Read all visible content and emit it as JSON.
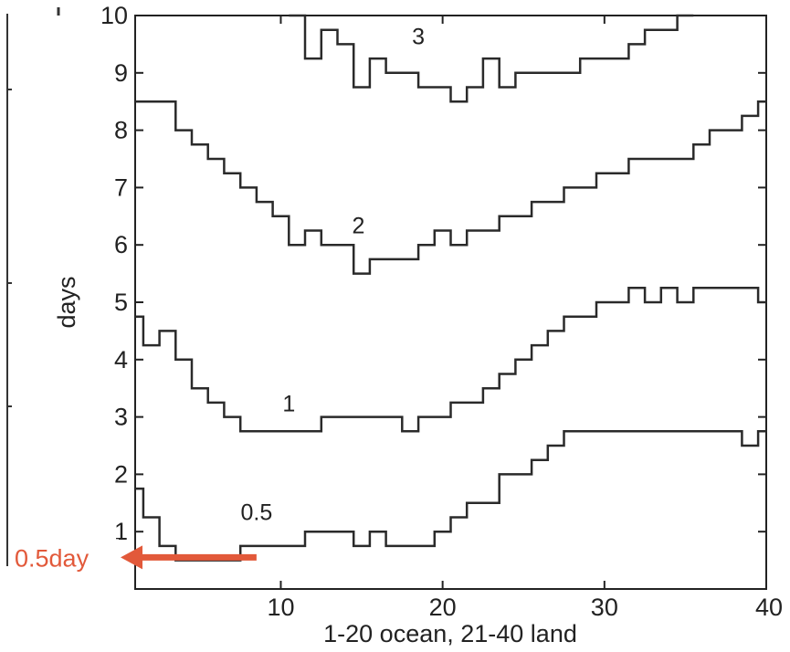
{
  "chart_data": {
    "type": "line",
    "xlabel": "1-20 ocean, 21-40 land",
    "ylabel": "days",
    "xlim": [
      1,
      40
    ],
    "ylim": [
      0,
      10
    ],
    "x_ticks": [
      10,
      20,
      30,
      40
    ],
    "y_ticks": [
      1,
      2,
      3,
      4,
      5,
      6,
      7,
      8,
      9,
      10
    ],
    "x_tick_labels": [
      "10",
      "20",
      "30",
      "40"
    ],
    "y_tick_labels": [
      "1",
      "2",
      "3",
      "4",
      "5",
      "6",
      "7",
      "8",
      "9",
      "10"
    ],
    "grid": false,
    "line_style": "step",
    "series": [
      {
        "name": "0.5",
        "label_at": [
          8.5,
          1.2
        ],
        "x": [
          1,
          2,
          3,
          4,
          5,
          6,
          7,
          8,
          9,
          10,
          11,
          12,
          13,
          14,
          15,
          16,
          17,
          18,
          19,
          20,
          21,
          22,
          23,
          24,
          25,
          26,
          27,
          28,
          29,
          30,
          31,
          32,
          33,
          34,
          35,
          36,
          37,
          38,
          39,
          40
        ],
        "y": [
          1.75,
          1.25,
          0.75,
          0.5,
          0.5,
          0.5,
          0.5,
          0.75,
          0.75,
          0.75,
          0.75,
          1.0,
          1.0,
          1.0,
          0.75,
          1.0,
          0.75,
          0.75,
          0.75,
          1.0,
          1.25,
          1.5,
          1.5,
          2.0,
          2.0,
          2.25,
          2.5,
          2.75,
          2.75,
          2.75,
          2.75,
          2.75,
          2.75,
          2.75,
          2.75,
          2.75,
          2.75,
          2.75,
          2.5,
          2.75
        ]
      },
      {
        "name": "1",
        "label_at": [
          10.5,
          3.1
        ],
        "x": [
          1,
          2,
          3,
          4,
          5,
          6,
          7,
          8,
          9,
          10,
          11,
          12,
          13,
          14,
          15,
          16,
          17,
          18,
          19,
          20,
          21,
          22,
          23,
          24,
          25,
          26,
          27,
          28,
          29,
          30,
          31,
          32,
          33,
          34,
          35,
          36,
          37,
          38,
          39,
          40
        ],
        "y": [
          4.75,
          4.25,
          4.5,
          4.0,
          3.5,
          3.25,
          3.0,
          2.75,
          2.75,
          2.75,
          2.75,
          2.75,
          3.0,
          3.0,
          3.0,
          3.0,
          3.0,
          2.75,
          3.0,
          3.0,
          3.25,
          3.25,
          3.5,
          3.75,
          4.0,
          4.25,
          4.5,
          4.75,
          4.75,
          5.0,
          5.0,
          5.25,
          5.0,
          5.25,
          5.0,
          5.25,
          5.25,
          5.25,
          5.25,
          5.0
        ]
      },
      {
        "name": "2",
        "label_at": [
          14.8,
          6.2
        ],
        "x": [
          1,
          2,
          3,
          4,
          5,
          6,
          7,
          8,
          9,
          10,
          11,
          12,
          13,
          14,
          15,
          16,
          17,
          18,
          19,
          20,
          21,
          22,
          23,
          24,
          25,
          26,
          27,
          28,
          29,
          30,
          31,
          32,
          33,
          34,
          35,
          36,
          37,
          38,
          39,
          40
        ],
        "y": [
          8.5,
          8.5,
          8.5,
          8.0,
          7.75,
          7.5,
          7.25,
          7.0,
          6.75,
          6.5,
          6.0,
          6.25,
          6.0,
          6.0,
          5.5,
          5.75,
          5.75,
          5.75,
          6.0,
          6.25,
          6.0,
          6.25,
          6.25,
          6.5,
          6.5,
          6.75,
          6.75,
          7.0,
          7.0,
          7.25,
          7.25,
          7.5,
          7.5,
          7.5,
          7.5,
          7.75,
          8.0,
          8.0,
          8.25,
          8.5
        ]
      },
      {
        "name": "3",
        "label_at": [
          18.5,
          9.5
        ],
        "x": [
          11,
          12,
          13,
          14,
          15,
          16,
          17,
          18,
          19,
          20,
          21,
          22,
          23,
          24,
          25,
          26,
          27,
          28,
          29,
          30,
          31,
          32,
          33,
          34,
          35
        ],
        "y": [
          10.0,
          9.25,
          9.75,
          9.5,
          8.75,
          9.25,
          9.0,
          9.0,
          8.75,
          8.75,
          8.5,
          8.75,
          9.25,
          8.75,
          9.0,
          9.0,
          9.0,
          9.0,
          9.25,
          9.25,
          9.25,
          9.5,
          9.75,
          9.75,
          10.0
        ]
      }
    ],
    "annotation": {
      "text": "0.5day",
      "color": "#e2593a",
      "arrow_from_x": 8.5,
      "arrow_y": 0.6
    },
    "colors": {
      "line": "#2a2a2a",
      "axis": "#222222",
      "annotation": "#e2593a"
    }
  }
}
